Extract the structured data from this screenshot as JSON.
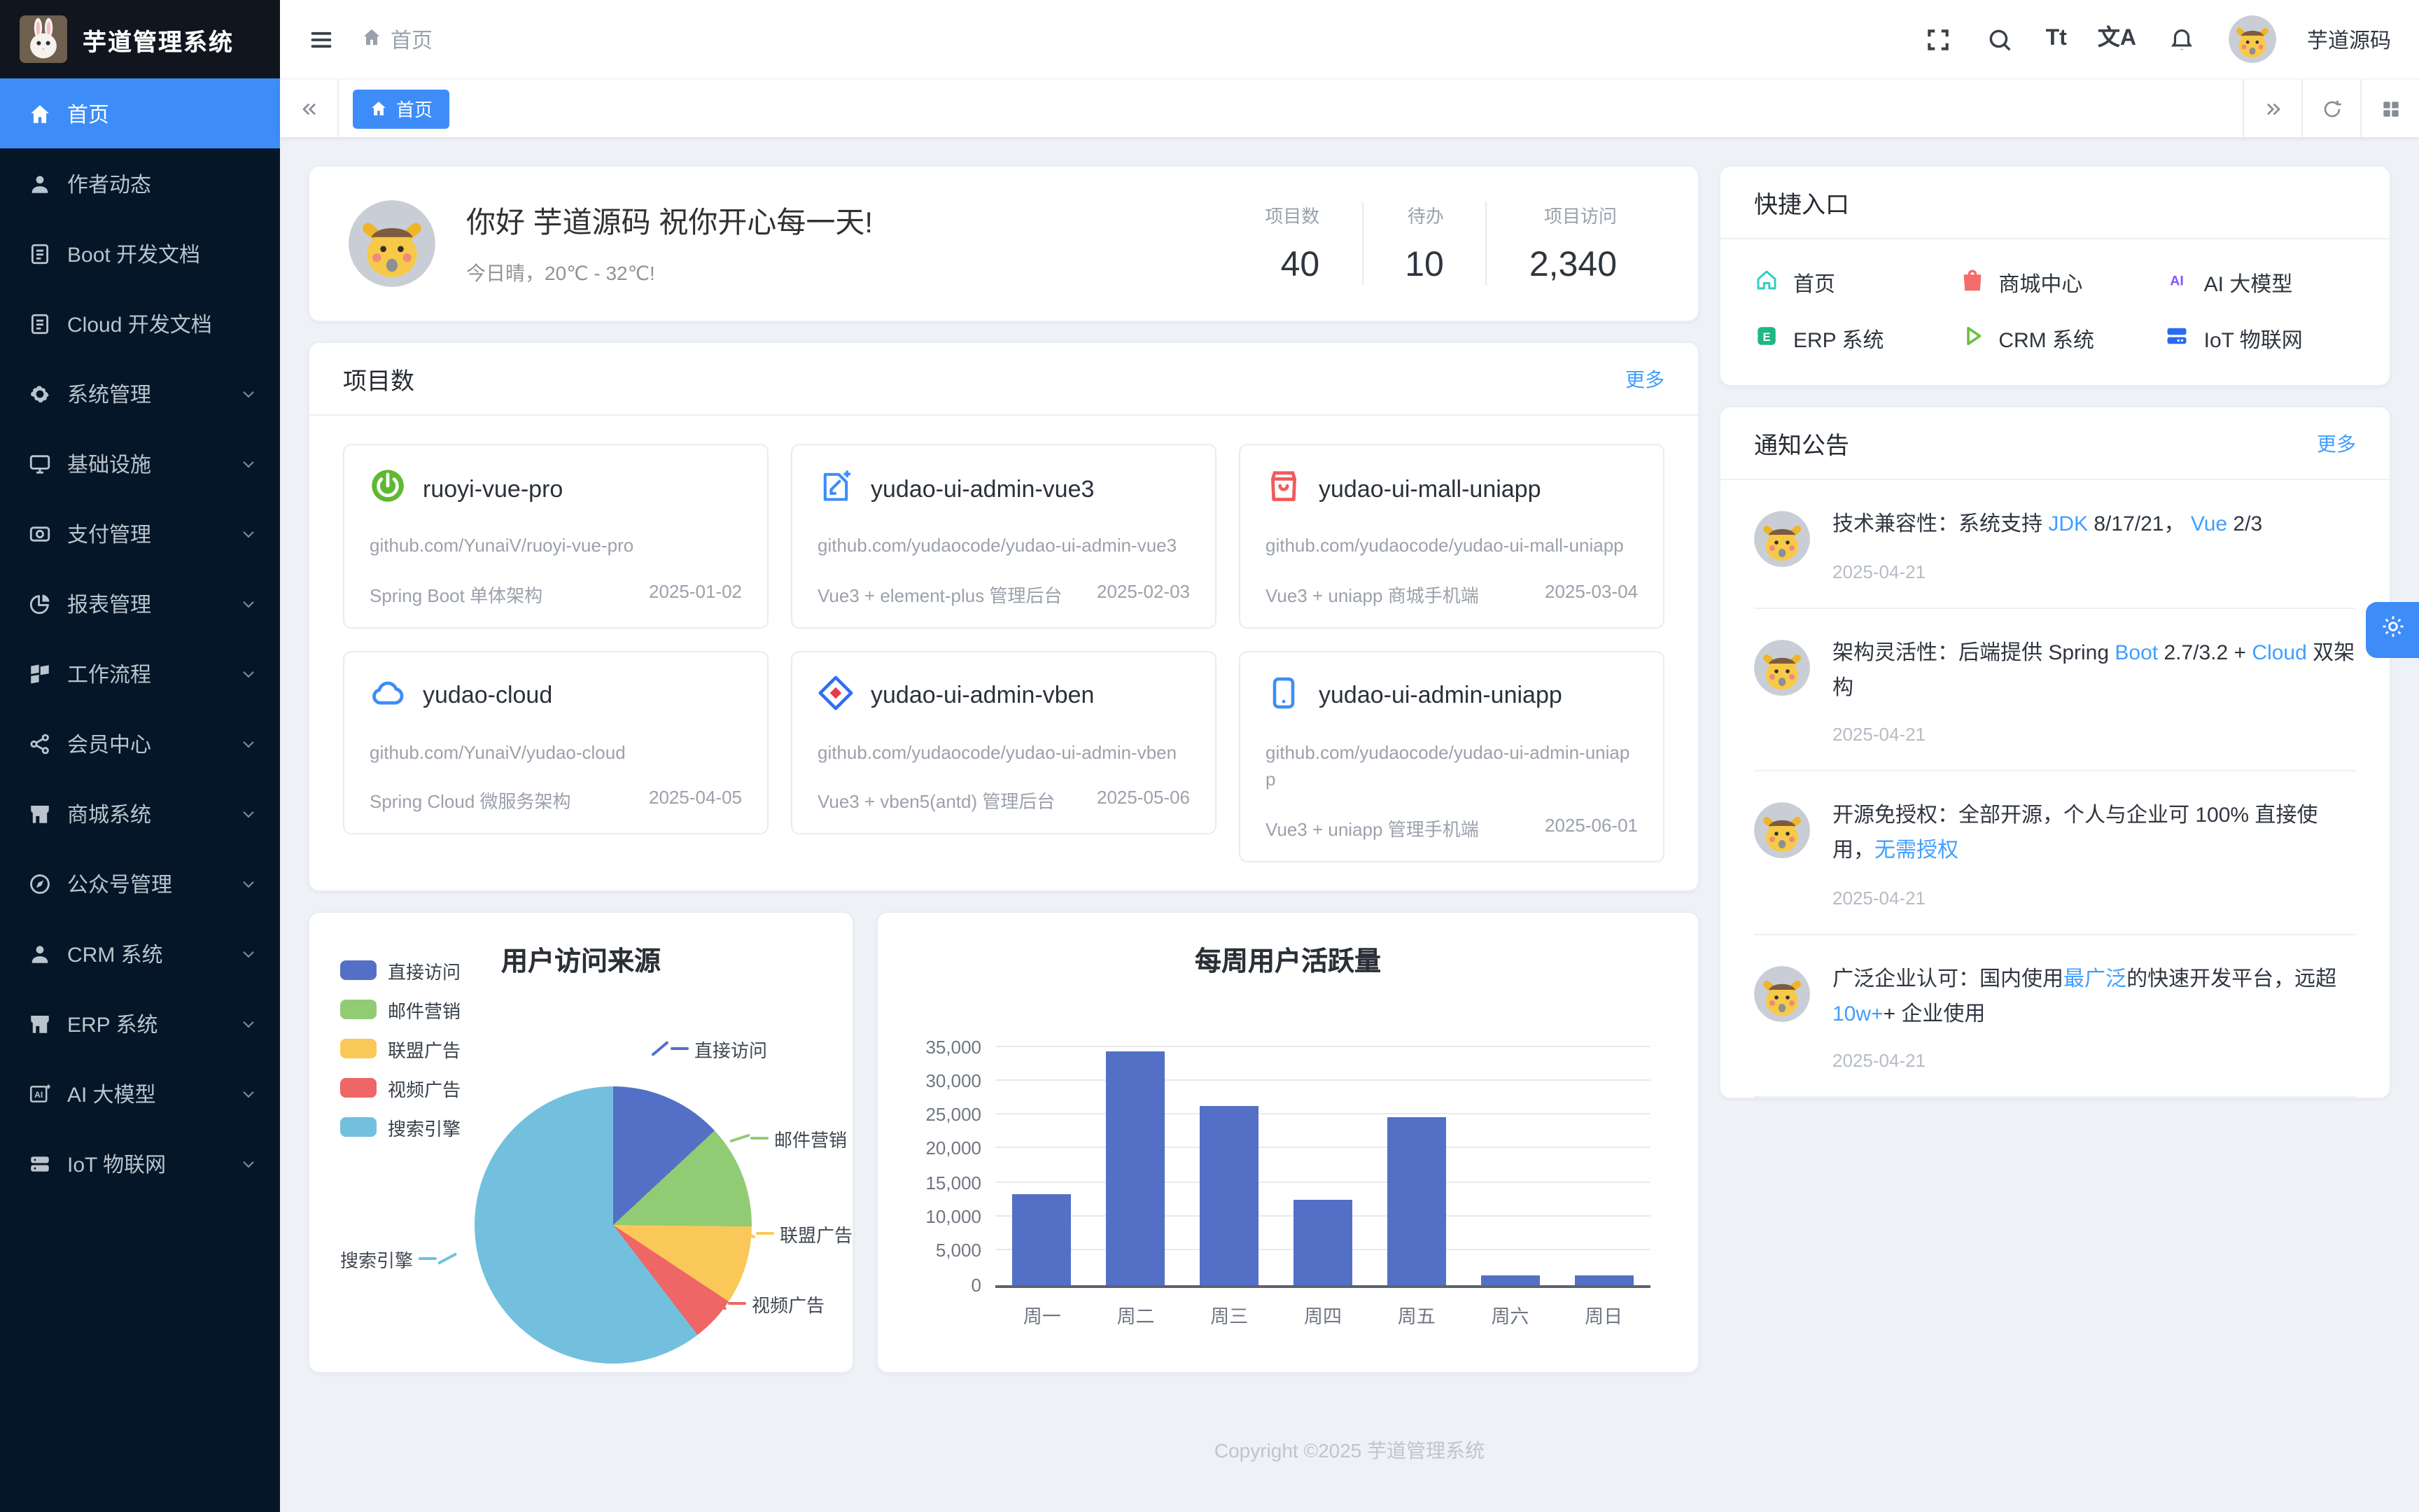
{
  "app": {
    "name": "芋道管理系统",
    "username": "芋道源码",
    "footer": "Copyright ©2025 芋道管理系统"
  },
  "colors": {
    "primary": "#3e8cf7",
    "link": "#409eff",
    "sidebar_bg": "#041627"
  },
  "navbar": {
    "breadcrumb": "首页",
    "right_icons": [
      "fullscreen-icon",
      "search-icon",
      "font-size-icon",
      "language-icon",
      "bell-icon"
    ],
    "font_size_glyph": "Tt",
    "language_glyph": "文A"
  },
  "tabbar": {
    "tabs": [
      {
        "label": "首页",
        "active": true
      }
    ]
  },
  "sidebar": {
    "items": [
      {
        "label": "首页",
        "icon": "home",
        "active": true,
        "expandable": false
      },
      {
        "label": "作者动态",
        "icon": "user",
        "expandable": false
      },
      {
        "label": "Boot 开发文档",
        "icon": "doc",
        "expandable": false
      },
      {
        "label": "Cloud 开发文档",
        "icon": "doc",
        "expandable": false
      },
      {
        "label": "系统管理",
        "icon": "gear",
        "expandable": true
      },
      {
        "label": "基础设施",
        "icon": "monitor",
        "expandable": true
      },
      {
        "label": "支付管理",
        "icon": "pay",
        "expandable": true
      },
      {
        "label": "报表管理",
        "icon": "piechart",
        "expandable": true
      },
      {
        "label": "工作流程",
        "icon": "flag",
        "expandable": true
      },
      {
        "label": "会员中心",
        "icon": "share",
        "expandable": true
      },
      {
        "label": "商城系统",
        "icon": "shop",
        "expandable": true
      },
      {
        "label": "公众号管理",
        "icon": "compass",
        "expandable": true
      },
      {
        "label": "CRM 系统",
        "icon": "user",
        "expandable": true
      },
      {
        "label": "ERP 系统",
        "icon": "shop",
        "expandable": true
      },
      {
        "label": "AI 大模型",
        "icon": "ai",
        "expandable": true
      },
      {
        "label": "IoT 物联网",
        "icon": "server",
        "expandable": true
      }
    ]
  },
  "welcome": {
    "greeting": "你好 芋道源码 祝你开心每一天!",
    "weather": "今日晴，20℃ - 32℃!",
    "stats": [
      {
        "label": "项目数",
        "value": "40"
      },
      {
        "label": "待办",
        "value": "10"
      },
      {
        "label": "项目访问",
        "value": "2,340"
      }
    ]
  },
  "projects": {
    "title": "项目数",
    "more": "更多",
    "cards": [
      {
        "name": "ruoyi-vue-pro",
        "url": "github.com/YunaiV/ruoyi-vue-pro",
        "desc": "Spring Boot 单体架构",
        "date": "2025-01-02",
        "icon": "spring"
      },
      {
        "name": "yudao-ui-admin-vue3",
        "url": "github.com/yudaocode/yudao-ui-admin-vue3",
        "desc": "Vue3 + element-plus 管理后台",
        "date": "2025-02-03",
        "icon": "vue3"
      },
      {
        "name": "yudao-ui-mall-uniapp",
        "url": "github.com/yudaocode/yudao-ui-mall-uniapp",
        "desc": "Vue3 + uniapp 商城手机端",
        "date": "2025-03-04",
        "icon": "mall"
      },
      {
        "name": "yudao-cloud",
        "url": "github.com/YunaiV/yudao-cloud",
        "desc": "Spring Cloud 微服务架构",
        "date": "2025-04-05",
        "icon": "cloud"
      },
      {
        "name": "yudao-ui-admin-vben",
        "url": "github.com/yudaocode/yudao-ui-admin-vben",
        "desc": "Vue3 + vben5(antd) 管理后台",
        "date": "2025-05-06",
        "icon": "vben"
      },
      {
        "name": "yudao-ui-admin-uniapp",
        "url": "github.com/yudaocode/yudao-ui-admin-uniapp",
        "desc": "Vue3 + uniapp 管理手机端",
        "date": "2025-06-01",
        "icon": "phone"
      }
    ]
  },
  "shortcuts": {
    "title": "快捷入口",
    "items": [
      {
        "label": "首页",
        "icon": "sc-home",
        "color": "#2fd0c0"
      },
      {
        "label": "商城中心",
        "icon": "sc-mall",
        "color": "#f56c6c"
      },
      {
        "label": "AI 大模型",
        "icon": "sc-ai",
        "color": "#8655f6"
      },
      {
        "label": "ERP 系统",
        "icon": "sc-erp",
        "color": "#1fb786"
      },
      {
        "label": "CRM 系统",
        "icon": "sc-crm",
        "color": "#67c23a"
      },
      {
        "label": "IoT 物联网",
        "icon": "sc-iot",
        "color": "#2a6af2"
      }
    ]
  },
  "notices": {
    "title": "通知公告",
    "more": "更多",
    "items": [
      {
        "segments": [
          {
            "t": "技术兼容性：系统支持 "
          },
          {
            "t": "JDK",
            "link": true
          },
          {
            "t": " 8/17/21， "
          },
          {
            "t": "Vue",
            "link": true
          },
          {
            "t": " 2/3"
          }
        ],
        "date": "2025-04-21"
      },
      {
        "segments": [
          {
            "t": "架构灵活性：后端提供 Spring "
          },
          {
            "t": "Boot",
            "link": true
          },
          {
            "t": " 2.7/3.2 + "
          },
          {
            "t": "Cloud",
            "link": true
          },
          {
            "t": " 双架构"
          }
        ],
        "date": "2025-04-21"
      },
      {
        "segments": [
          {
            "t": "开源免授权：全部开源，个人与企业可 100% 直接使用，"
          },
          {
            "t": "无需授权",
            "link": true
          }
        ],
        "date": "2025-04-21"
      },
      {
        "segments": [
          {
            "t": "广泛企业认可：国内使用"
          },
          {
            "t": "最广泛",
            "link": true
          },
          {
            "t": "的快速开发平台，远超 "
          },
          {
            "t": "10w+",
            "link": true
          },
          {
            "t": "+ 企业使用"
          }
        ],
        "date": "2025-04-21"
      }
    ]
  },
  "chart_data": [
    {
      "type": "pie",
      "title": "用户访问来源",
      "labels": [
        "直接访问",
        "邮件营销",
        "联盟广告",
        "视频广告",
        "搜索引擎"
      ],
      "values": [
        335,
        310,
        234,
        135,
        1548
      ],
      "percents": [
        13.1,
        12.1,
        9.1,
        5.3,
        60.4
      ],
      "colors": [
        "#5470c6",
        "#91cc75",
        "#fac858",
        "#ee6666",
        "#73c0de"
      ],
      "legend_position": "top-left"
    },
    {
      "type": "bar",
      "title": "每周用户活跃量",
      "categories": [
        "周一",
        "周二",
        "周三",
        "周四",
        "周五",
        "周六",
        "周日"
      ],
      "values": [
        13300,
        34300,
        26300,
        12400,
        24700,
        1300,
        1300
      ],
      "ylim": [
        0,
        35000
      ],
      "ytick_step": 5000,
      "bar_color": "#5470c6",
      "grid": true
    }
  ]
}
